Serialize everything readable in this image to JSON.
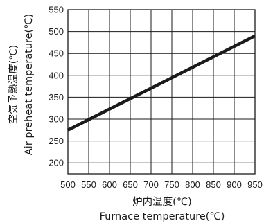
{
  "chart_data": {
    "type": "line",
    "xlabel": [
      "炉内温度(℃)",
      "Furnace temperature(℃)"
    ],
    "ylabel": [
      "空気予熱温度(℃)",
      "Air preheat temperature(℃)"
    ],
    "xlim": [
      500,
      950
    ],
    "ylim": [
      175,
      550
    ],
    "x_ticks": [
      500,
      550,
      600,
      650,
      700,
      750,
      800,
      850,
      900,
      950
    ],
    "y_ticks": [
      200,
      250,
      300,
      350,
      400,
      450,
      500,
      550
    ],
    "grid": true,
    "legend": "none",
    "line_color": "#1a1a1a",
    "series": [
      {
        "x": [
          500,
          950
        ],
        "y": [
          275,
          490
        ]
      }
    ]
  }
}
